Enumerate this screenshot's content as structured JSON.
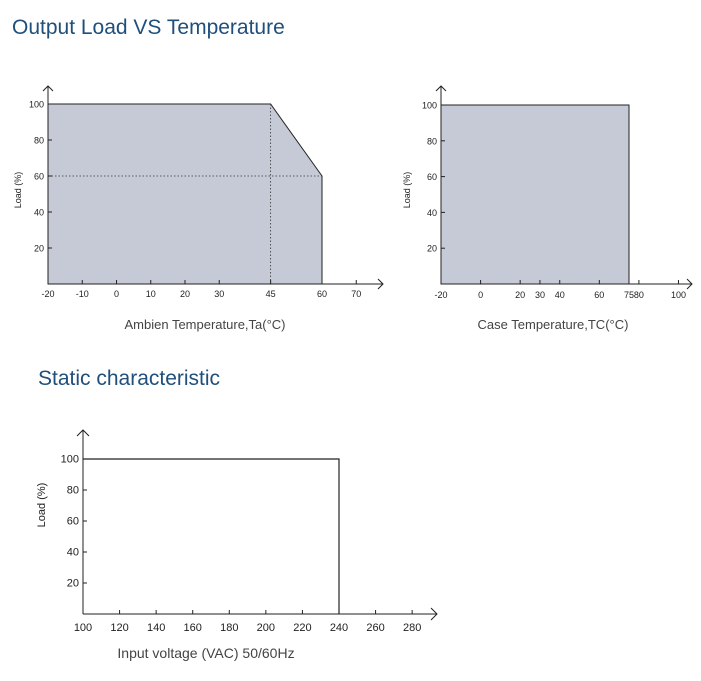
{
  "headings": {
    "load_vs_temp": "Output Load VS Temperature",
    "static": "Static characteristic"
  },
  "chart_data": [
    {
      "id": "ambient",
      "type": "area",
      "xlabel": "Ambien Temperature,Ta(°C)",
      "ylabel": "Load (%)",
      "x_ticks": [
        -20,
        -10,
        0,
        10,
        20,
        30,
        45,
        60,
        70
      ],
      "y_ticks": [
        20,
        40,
        60,
        80,
        100
      ],
      "xlim": [
        -20,
        79
      ],
      "ylim": [
        0,
        110
      ],
      "x": [
        -20,
        45,
        60,
        60
      ],
      "y": [
        100,
        100,
        60,
        0
      ],
      "fill": "#c5cad6",
      "reference_lines": {
        "x": 45,
        "y": 60
      }
    },
    {
      "id": "case",
      "type": "area",
      "xlabel": "Case Temperature,TC(°C)",
      "ylabel": "Load (%)",
      "x_ticks": [
        -20,
        0,
        20,
        30,
        40,
        60,
        75,
        80,
        100
      ],
      "y_ticks": [
        20,
        40,
        60,
        80,
        100
      ],
      "xlim": [
        -20,
        112
      ],
      "ylim": [
        0,
        110
      ],
      "x": [
        -20,
        75,
        75
      ],
      "y": [
        100,
        100,
        0
      ],
      "fill": "#c5cad6"
    },
    {
      "id": "static",
      "type": "line",
      "xlabel": "Input voltage (VAC)  50/60Hz",
      "ylabel": "Load (%)",
      "x_ticks": [
        100,
        120,
        140,
        160,
        180,
        200,
        220,
        240,
        260,
        280
      ],
      "y_ticks": [
        20,
        40,
        60,
        80,
        100
      ],
      "xlim": [
        100,
        294
      ],
      "ylim": [
        0,
        110
      ],
      "x": [
        100,
        240,
        240
      ],
      "y": [
        100,
        100,
        0
      ],
      "fill": "none"
    }
  ]
}
